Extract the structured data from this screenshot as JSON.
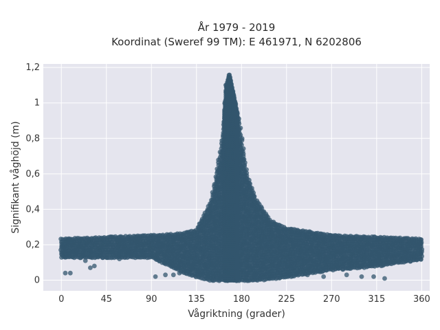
{
  "chart_data": {
    "type": "scatter",
    "title": "År 1979 - 2019",
    "subtitle": "Koordinat (Sweref 99 TM): E 461971, N 6202806",
    "xlabel": "Vågriktning (grader)",
    "ylabel": "Signifikant våghöjd (m)",
    "xlim": [
      -18,
      368
    ],
    "ylim": [
      -0.06,
      1.22
    ],
    "x_ticks": [
      0,
      45,
      90,
      135,
      180,
      225,
      270,
      315,
      360
    ],
    "y_ticks": [
      0,
      0.2,
      0.4,
      0.6,
      0.8,
      1,
      1.2
    ],
    "y_tick_labels": [
      "0",
      "0,2",
      "0,4",
      "0,6",
      "0,8",
      "1",
      "1,2"
    ],
    "grid": true,
    "marker_color": "#33566e",
    "background_color": "#e5e5ee",
    "series": [
      {
        "note_points": "dense scatter; envelope sampled by direction",
        "envelope": [
          {
            "x": 0,
            "ymin": 0.13,
            "ymax": 0.23
          },
          {
            "x": 45,
            "ymin": 0.13,
            "ymax": 0.24
          },
          {
            "x": 90,
            "ymin": 0.13,
            "ymax": 0.25
          },
          {
            "x": 120,
            "ymin": 0.05,
            "ymax": 0.26
          },
          {
            "x": 135,
            "ymin": 0.02,
            "ymax": 0.28
          },
          {
            "x": 150,
            "ymin": 0.0,
            "ymax": 0.45
          },
          {
            "x": 160,
            "ymin": 0.0,
            "ymax": 0.75
          },
          {
            "x": 165,
            "ymin": 0.0,
            "ymax": 1.1
          },
          {
            "x": 168,
            "ymin": 0.0,
            "ymax": 1.16
          },
          {
            "x": 172,
            "ymin": 0.0,
            "ymax": 1.05
          },
          {
            "x": 178,
            "ymin": 0.0,
            "ymax": 0.88
          },
          {
            "x": 185,
            "ymin": 0.0,
            "ymax": 0.6
          },
          {
            "x": 195,
            "ymin": 0.0,
            "ymax": 0.45
          },
          {
            "x": 210,
            "ymin": 0.01,
            "ymax": 0.33
          },
          {
            "x": 225,
            "ymin": 0.02,
            "ymax": 0.29
          },
          {
            "x": 270,
            "ymin": 0.06,
            "ymax": 0.25
          },
          {
            "x": 315,
            "ymin": 0.08,
            "ymax": 0.24
          },
          {
            "x": 360,
            "ymin": 0.12,
            "ymax": 0.23
          }
        ],
        "outliers": [
          {
            "x": 4,
            "y": 0.04
          },
          {
            "x": 9,
            "y": 0.04
          },
          {
            "x": 24,
            "y": 0.11
          },
          {
            "x": 29,
            "y": 0.07
          },
          {
            "x": 33,
            "y": 0.08
          },
          {
            "x": 58,
            "y": 0.12
          },
          {
            "x": 94,
            "y": 0.02
          },
          {
            "x": 104,
            "y": 0.03
          },
          {
            "x": 112,
            "y": 0.03
          },
          {
            "x": 118,
            "y": 0.04
          },
          {
            "x": 246,
            "y": 0.03
          },
          {
            "x": 262,
            "y": 0.02
          },
          {
            "x": 285,
            "y": 0.03
          },
          {
            "x": 300,
            "y": 0.02
          },
          {
            "x": 312,
            "y": 0.02
          },
          {
            "x": 323,
            "y": 0.01
          }
        ]
      }
    ]
  }
}
